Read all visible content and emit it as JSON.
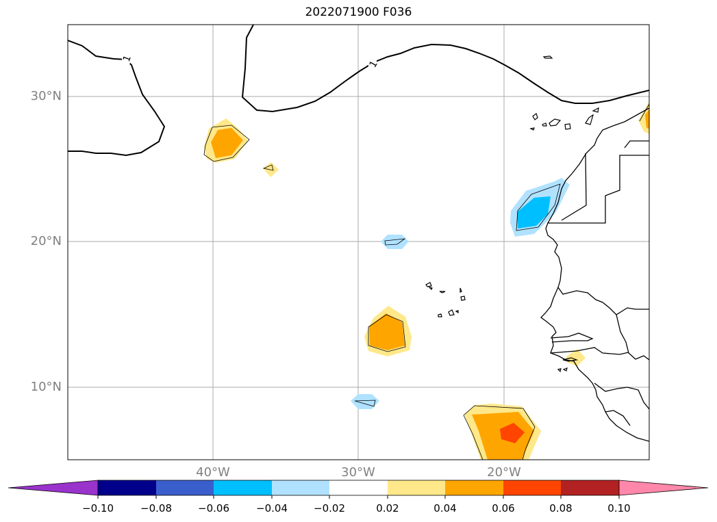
{
  "title": "2022071900 F036",
  "map": {
    "lat_labels": [
      {
        "id": "lat-30",
        "text": "30°N"
      },
      {
        "id": "lat-20",
        "text": "20°N"
      },
      {
        "id": "lat-10",
        "text": "10°N"
      }
    ],
    "lon_labels": [
      {
        "id": "lon-40",
        "text": "40°W"
      },
      {
        "id": "lon-30",
        "text": "30°W"
      },
      {
        "id": "lon-20",
        "text": "20°W"
      }
    ],
    "contour_label": "1",
    "label_color": "#808080",
    "grid_color": "#aaaaaa"
  },
  "colorbar": {
    "levels": [
      "−0.10",
      "−0.08",
      "−0.06",
      "−0.04",
      "−0.02",
      "0.02",
      "0.04",
      "0.06",
      "0.08",
      "0.10"
    ],
    "under_color": "#9933cc",
    "over_color": "#ff88aa",
    "colors": [
      "#00008b",
      "#3a5fcd",
      "#00bfff",
      "#b0e2ff",
      "#ffffff",
      "#ffe88a",
      "#ffa500",
      "#ff4500",
      "#b22222"
    ]
  }
}
